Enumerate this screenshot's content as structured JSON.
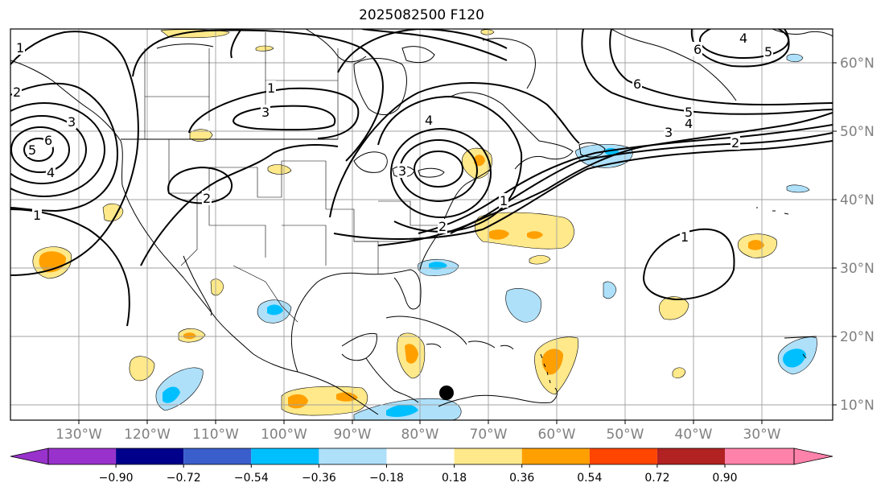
{
  "title": "2025082500 F120",
  "map": {
    "lon_ticks": [
      "130°W",
      "120°W",
      "110°W",
      "100°W",
      "90°W",
      "80°W",
      "70°W",
      "60°W",
      "50°W",
      "40°W",
      "30°W"
    ],
    "lat_ticks": [
      "60°N",
      "50°N",
      "40°N",
      "30°N",
      "20°N",
      "10°N"
    ],
    "contour_labels": [
      "1",
      "2",
      "3",
      "4",
      "5",
      "6",
      "2",
      "3",
      "4",
      "1",
      "3",
      "2",
      "1",
      "1",
      "2",
      "3",
      "4",
      "5",
      "6",
      "6",
      "5",
      "4",
      "1"
    ],
    "marker": "storm-position-dot",
    "colors": {
      "contour": "#000000",
      "grid": "#a0a0a0",
      "coast": "#000000"
    }
  },
  "colorbar": {
    "ticks": [
      "−0.90",
      "−0.72",
      "−0.54",
      "−0.36",
      "−0.18",
      "0.18",
      "0.36",
      "0.54",
      "0.72",
      "0.90"
    ],
    "colors": [
      "#9932cc",
      "#00008b",
      "#3a5fcd",
      "#00bfff",
      "#aee0fa",
      "#ffffff",
      "#ffe98a",
      "#ffa000",
      "#ff4500",
      "#b22222",
      "#ff82ab"
    ]
  }
}
